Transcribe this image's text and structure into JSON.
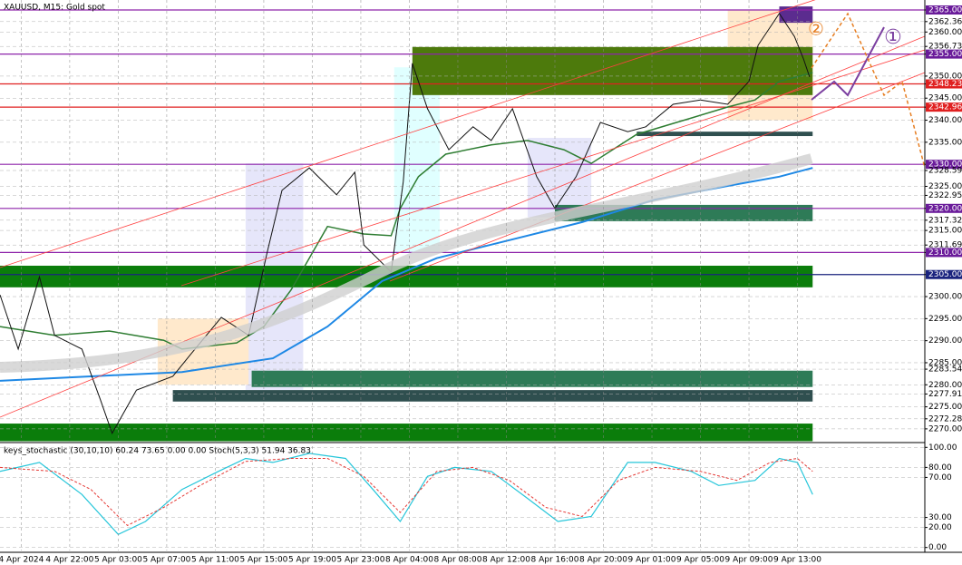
{
  "chart_data": [
    {
      "type": "line",
      "title": "XAUUSD, M15: Gold spot",
      "xlim": [
        0,
        305
      ],
      "ylim": [
        2267.1,
        2367.26
      ],
      "yticks": [
        {
          "value": 2365,
          "label": "2365.00",
          "bg": "#6a1b9a"
        },
        {
          "value": 2362.36,
          "label": "2362.36"
        },
        {
          "value": 2360,
          "label": "2360.00"
        },
        {
          "value": 2356.73,
          "label": "2356.73"
        },
        {
          "value": 2355,
          "label": "2355.00",
          "bg": "#6a1b9a"
        },
        {
          "value": 2350,
          "label": "2350.00"
        },
        {
          "value": 2348.23,
          "label": "2348.23",
          "bg": "#e02020"
        },
        {
          "value": 2345,
          "label": "2345.00"
        },
        {
          "value": 2342.96,
          "label": "2342.96",
          "bg": "#e02020"
        },
        {
          "value": 2340,
          "label": "2340.00"
        },
        {
          "value": 2335,
          "label": "2335.00"
        },
        {
          "value": 2330,
          "label": "2330.00",
          "bg": "#6a1b9a"
        },
        {
          "value": 2328.59,
          "label": "2328.59"
        },
        {
          "value": 2325,
          "label": "2325.00"
        },
        {
          "value": 2322.95,
          "label": "2322.95"
        },
        {
          "value": 2320,
          "label": "2320.00",
          "bg": "#6a1b9a"
        },
        {
          "value": 2317.32,
          "label": "2317.32"
        },
        {
          "value": 2315,
          "label": "2315.00"
        },
        {
          "value": 2311.69,
          "label": "2311.69"
        },
        {
          "value": 2310,
          "label": "2310.00",
          "bg": "#6a1b9a"
        },
        {
          "value": 2305,
          "label": "2305.00",
          "bg": "#1a237e"
        },
        {
          "value": 2300,
          "label": "2300.00"
        },
        {
          "value": 2295,
          "label": "2295.00"
        },
        {
          "value": 2290,
          "label": "2290.00"
        },
        {
          "value": 2285,
          "label": "2285.00"
        },
        {
          "value": 2283.54,
          "label": "2283.54"
        },
        {
          "value": 2280,
          "label": "2280.00"
        },
        {
          "value": 2277.91,
          "label": "2277.91"
        },
        {
          "value": 2275,
          "label": "2275.00"
        },
        {
          "value": 2272.28,
          "label": "2272.28"
        },
        {
          "value": 2270,
          "label": "2270.00"
        }
      ],
      "zones": [
        {
          "x": [
            81,
            100
          ],
          "y": [
            2278.8,
            2330.2
          ],
          "color": "#e6e6fa"
        },
        {
          "x": [
            130,
            145
          ],
          "y": [
            2310,
            2352
          ],
          "color": "#e0ffff"
        },
        {
          "x": [
            52,
            82
          ],
          "y": [
            2280,
            2295
          ],
          "color": "#ffe9cc"
        },
        {
          "x": [
            240,
            268
          ],
          "y": [
            2340,
            2365
          ],
          "color": "#ffe9cc"
        },
        {
          "x": [
            174,
            195
          ],
          "y": [
            2318,
            2336
          ],
          "color": "#e6e6fa"
        },
        {
          "x": [
            136,
            268
          ],
          "y": [
            2345.7,
            2356.6
          ],
          "color": "#4d7a0c"
        },
        {
          "x": [
            0,
            268
          ],
          "y": [
            2302.1,
            2307
          ],
          "color": "#0b7d0b"
        },
        {
          "x": [
            0,
            268
          ],
          "y": [
            2267.2,
            2271.2
          ],
          "color": "#0b7d0b"
        },
        {
          "x": [
            83,
            268
          ],
          "y": [
            2279.5,
            2283.2
          ],
          "color": "#2e7b57"
        },
        {
          "x": [
            57,
            268
          ],
          "y": [
            2276.2,
            2278.8
          ],
          "color": "#2f4f4f"
        },
        {
          "x": [
            183,
            268
          ],
          "y": [
            2317.1,
            2320.8
          ],
          "color": "#2e7b57"
        },
        {
          "x": [
            210,
            268
          ],
          "y": [
            2336.4,
            2337.4
          ],
          "color": "#2f4f4f"
        },
        {
          "x": [
            257,
            268
          ],
          "y": [
            2362.1,
            2365.8
          ],
          "color": "#5b2c8f"
        }
      ],
      "levels": [
        {
          "value": 2365,
          "color": "#8e24aa"
        },
        {
          "value": 2355,
          "color": "#8e24aa"
        },
        {
          "value": 2348.23,
          "color": "#e02020"
        },
        {
          "value": 2342.96,
          "color": "#e02020"
        },
        {
          "value": 2330,
          "color": "#8e24aa"
        },
        {
          "value": 2320,
          "color": "#8e24aa"
        },
        {
          "value": 2310,
          "color": "#8e24aa"
        },
        {
          "value": 2305,
          "color": "#1a237e"
        }
      ],
      "series": [
        {
          "color": "#1e88e5",
          "width": 2,
          "x": [
            0,
            30,
            60,
            90,
            108,
            126,
            144,
            168,
            192,
            216,
            240,
            257,
            268
          ],
          "values": [
            2280.9,
            2281.9,
            2282.9,
            2286,
            2293.2,
            2303.5,
            2308.7,
            2312.8,
            2316.9,
            2322,
            2325.1,
            2327.2,
            2329.2
          ]
        },
        {
          "color": "#2e7d32",
          "width": 1.5,
          "x": [
            0,
            18,
            36,
            54,
            60,
            78,
            87,
            96,
            108,
            120,
            129,
            132,
            138,
            147,
            162,
            174,
            186,
            195,
            210,
            228,
            240,
            249,
            257,
            268
          ],
          "values": [
            2293.2,
            2291.2,
            2292.2,
            2290.1,
            2288.1,
            2289.5,
            2293.2,
            2301.5,
            2315.9,
            2314.2,
            2313.8,
            2320,
            2327.2,
            2332.3,
            2334.4,
            2335.4,
            2333.3,
            2330.2,
            2336.8,
            2340.5,
            2343,
            2344.6,
            2348.8,
            2350.8
          ]
        },
        {
          "color": "#111111",
          "width": 1,
          "x": [
            0,
            6,
            13,
            18,
            27,
            33,
            37,
            45,
            57,
            63,
            73,
            82,
            88,
            93,
            102,
            111,
            117,
            120,
            129,
            133,
            136,
            141,
            148,
            156,
            162,
            169,
            177,
            183,
            190,
            198,
            207,
            213,
            222,
            231,
            240,
            247,
            250,
            257,
            262,
            265,
            267
          ],
          "values": [
            2300.4,
            2288.1,
            2304.5,
            2291.2,
            2288.1,
            2276.8,
            2269,
            2278.8,
            2281.9,
            2287,
            2295.3,
            2291.2,
            2309.7,
            2324.1,
            2329.2,
            2323.1,
            2328.2,
            2311.7,
            2305.6,
            2326.1,
            2352.9,
            2342.6,
            2333.3,
            2338.5,
            2335.4,
            2342.6,
            2327.2,
            2320,
            2327.2,
            2339.5,
            2337.4,
            2338.5,
            2343.6,
            2344.6,
            2343.6,
            2348.8,
            2357,
            2364.2,
            2359,
            2353.9,
            2349.8
          ]
        }
      ],
      "annotations": [
        "①",
        "②"
      ]
    },
    {
      "type": "line",
      "title": "keys_stochastic (30,10,10) 60.24 73.65 0.00 0.00 Stoch(5,3,3) 51.94 36.83",
      "xlim": [
        0,
        305
      ],
      "ylim": [
        -3,
        103
      ],
      "yticks": [
        {
          "value": 100,
          "label": "100.00"
        },
        {
          "value": 80,
          "label": "80.00"
        },
        {
          "value": 70,
          "label": "70.00"
        },
        {
          "value": 30,
          "label": "30.00"
        },
        {
          "value": 20,
          "label": "20.00"
        },
        {
          "value": 0,
          "label": "0.00"
        }
      ],
      "xticks": [
        {
          "value": 7,
          "label": "4 Apr 2024"
        },
        {
          "value": 23,
          "label": "4 Apr 22:00"
        },
        {
          "value": 39,
          "label": "5 Apr 03:00"
        },
        {
          "value": 55,
          "label": "5 Apr 07:00"
        },
        {
          "value": 71,
          "label": "5 Apr 11:00"
        },
        {
          "value": 87,
          "label": "5 Apr 15:00"
        },
        {
          "value": 103,
          "label": "5 Apr 19:00"
        },
        {
          "value": 119,
          "label": "5 Apr 23:00"
        },
        {
          "value": 135,
          "label": "8 Apr 04:00"
        },
        {
          "value": 151,
          "label": "8 Apr 08:00"
        },
        {
          "value": 167,
          "label": "8 Apr 12:00"
        },
        {
          "value": 183,
          "label": "8 Apr 16:00"
        },
        {
          "value": 199,
          "label": "8 Apr 20:00"
        },
        {
          "value": 215,
          "label": "9 Apr 01:00"
        },
        {
          "value": 231,
          "label": "9 Apr 05:00"
        },
        {
          "value": 247,
          "label": "9 Apr 09:00"
        },
        {
          "value": 263,
          "label": "9 Apr 13:00"
        }
      ],
      "series": [
        {
          "color": "#26c6da",
          "width": 1.2,
          "dash": false,
          "x": [
            0,
            13,
            27,
            39,
            48,
            60,
            72,
            81,
            90,
            102,
            114,
            123,
            132,
            141,
            150,
            162,
            174,
            184,
            195,
            207,
            216,
            228,
            237,
            249,
            257,
            263,
            268
          ],
          "values": [
            76,
            85,
            53,
            13,
            26,
            58,
            76,
            89,
            85,
            94,
            89,
            58,
            26,
            71,
            80,
            76,
            49,
            26,
            31,
            85,
            85,
            76,
            62,
            67,
            89,
            85,
            53
          ]
        },
        {
          "color": "#e53935",
          "width": 1,
          "dash": true,
          "x": [
            0,
            18,
            30,
            42,
            54,
            66,
            81,
            96,
            108,
            120,
            132,
            144,
            156,
            168,
            180,
            192,
            204,
            216,
            231,
            243,
            254,
            263,
            268
          ],
          "values": [
            80,
            76,
            58,
            22,
            40,
            62,
            86,
            89,
            89,
            71,
            35,
            76,
            80,
            67,
            40,
            31,
            67,
            80,
            76,
            67,
            85,
            89,
            76
          ]
        }
      ]
    }
  ]
}
